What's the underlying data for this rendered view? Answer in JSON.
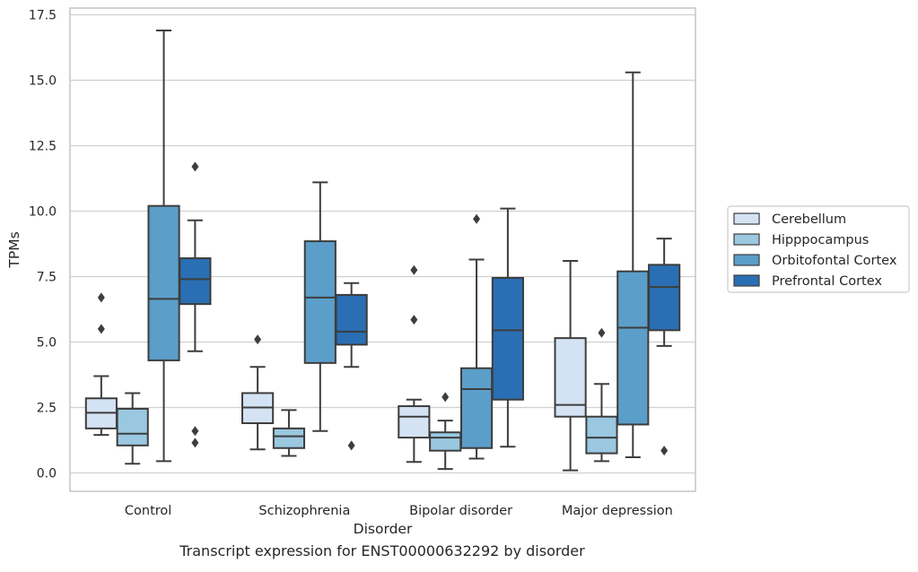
{
  "caption": "Transcript expression for ENST00000632292 by disorder",
  "chart_data": {
    "type": "box",
    "xlabel": "Disorder",
    "ylabel": "TPMs",
    "ylim": [
      -0.7,
      17.6
    ],
    "yticks": [
      0.0,
      2.5,
      5.0,
      7.5,
      10.0,
      12.5,
      15.0,
      17.5
    ],
    "ytick_labels": [
      "0.0",
      "2.5",
      "5.0",
      "7.5",
      "10.0",
      "12.5",
      "15.0",
      "17.5"
    ],
    "grid": "horizontal",
    "legend_position": "right",
    "categories": [
      "Control",
      "Schizophrenia",
      "Bipolar disorder",
      "Major depression"
    ],
    "series": [
      {
        "name": "Cerebellum",
        "color": "#d4e3f3",
        "boxes": [
          {
            "whisker_low": 1.45,
            "q1": 1.7,
            "median": 2.3,
            "q3": 2.85,
            "whisker_high": 3.7,
            "outliers": [
              5.5,
              6.7
            ]
          },
          {
            "whisker_low": 0.9,
            "q1": 1.9,
            "median": 2.5,
            "q3": 3.05,
            "whisker_high": 4.05,
            "outliers": [
              5.1
            ]
          },
          {
            "whisker_low": 0.42,
            "q1": 1.35,
            "median": 2.15,
            "q3": 2.55,
            "whisker_high": 2.8,
            "outliers": [
              5.85,
              7.75
            ]
          },
          {
            "whisker_low": 0.1,
            "q1": 2.15,
            "median": 2.6,
            "q3": 5.15,
            "whisker_high": 8.1,
            "outliers": []
          }
        ]
      },
      {
        "name": "Hipppocampus",
        "color": "#9ac8e0",
        "boxes": [
          {
            "whisker_low": 0.35,
            "q1": 1.05,
            "median": 1.5,
            "q3": 2.45,
            "whisker_high": 3.05,
            "outliers": []
          },
          {
            "whisker_low": 0.65,
            "q1": 0.95,
            "median": 1.4,
            "q3": 1.7,
            "whisker_high": 2.4,
            "outliers": []
          },
          {
            "whisker_low": 0.15,
            "q1": 0.85,
            "median": 1.35,
            "q3": 1.55,
            "whisker_high": 2.0,
            "outliers": [
              2.9
            ]
          },
          {
            "whisker_low": 0.45,
            "q1": 0.75,
            "median": 1.35,
            "q3": 2.15,
            "whisker_high": 3.4,
            "outliers": [
              5.35
            ]
          }
        ]
      },
      {
        "name": "Orbitofontal Cortex",
        "color": "#5b9ec9",
        "boxes": [
          {
            "whisker_low": 0.45,
            "q1": 4.3,
            "median": 6.65,
            "q3": 10.2,
            "whisker_high": 16.9,
            "outliers": []
          },
          {
            "whisker_low": 1.6,
            "q1": 4.2,
            "median": 6.7,
            "q3": 8.85,
            "whisker_high": 11.1,
            "outliers": []
          },
          {
            "whisker_low": 0.55,
            "q1": 0.95,
            "median": 3.2,
            "q3": 4.0,
            "whisker_high": 8.15,
            "outliers": [
              9.7
            ]
          },
          {
            "whisker_low": 0.6,
            "q1": 1.85,
            "median": 5.55,
            "q3": 7.7,
            "whisker_high": 15.3,
            "outliers": []
          }
        ]
      },
      {
        "name": "Prefrontal Cortex",
        "color": "#2a6fb3",
        "boxes": [
          {
            "whisker_low": 4.65,
            "q1": 6.45,
            "median": 7.4,
            "q3": 8.2,
            "whisker_high": 9.65,
            "outliers": [
              11.7,
              1.6,
              1.15
            ]
          },
          {
            "whisker_low": 4.05,
            "q1": 4.9,
            "median": 5.4,
            "q3": 6.8,
            "whisker_high": 7.25,
            "outliers": [
              1.05
            ]
          },
          {
            "whisker_low": 1.0,
            "q1": 2.8,
            "median": 5.45,
            "q3": 7.45,
            "whisker_high": 10.1,
            "outliers": []
          },
          {
            "whisker_low": 4.85,
            "q1": 5.45,
            "median": 7.1,
            "q3": 7.95,
            "whisker_high": 8.95,
            "outliers": [
              0.85
            ]
          }
        ]
      }
    ]
  }
}
